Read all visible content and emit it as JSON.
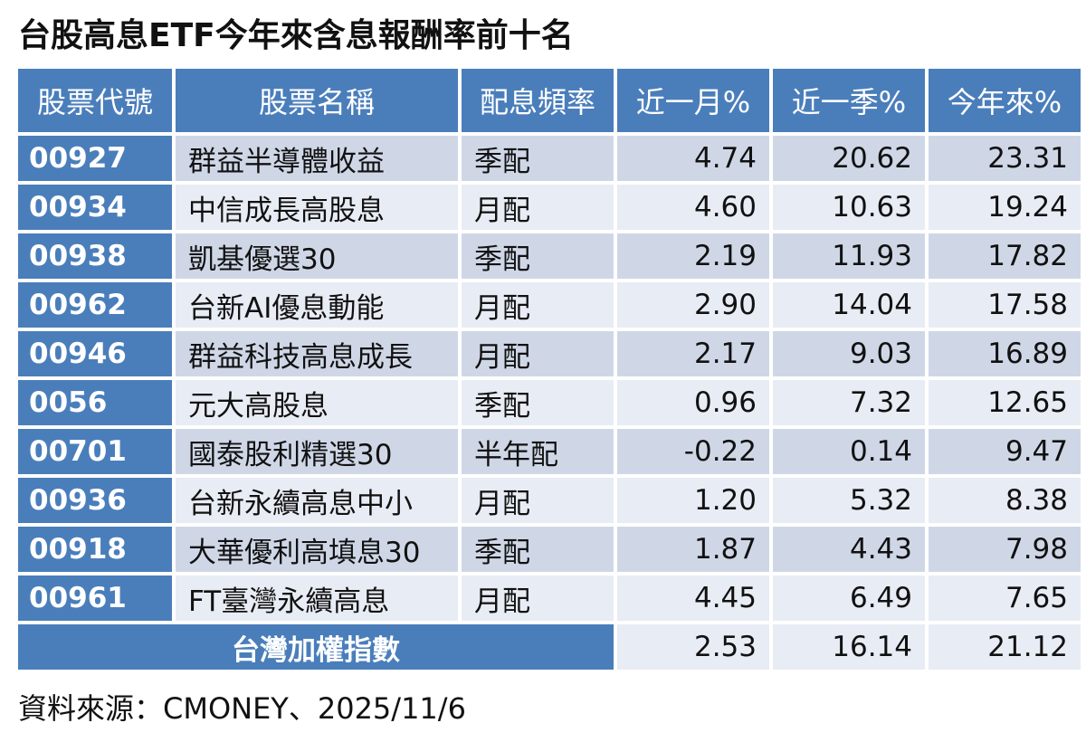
{
  "title": "台股高息ETF今年來含息報酬率前十名",
  "chart_data": {
    "type": "table",
    "title": "台股高息ETF今年來含息報酬率前十名",
    "columns": [
      "股票代號",
      "股票名稱",
      "配息頻率",
      "近一月%",
      "近一季%",
      "今年來%"
    ],
    "rows": [
      {
        "code": "00927",
        "name": "群益半導體收益",
        "freq": "季配",
        "m1": "4.74",
        "q1": "20.62",
        "ytd": "23.31"
      },
      {
        "code": "00934",
        "name": "中信成長高股息",
        "freq": "月配",
        "m1": "4.60",
        "q1": "10.63",
        "ytd": "19.24"
      },
      {
        "code": "00938",
        "name": "凱基優選30",
        "freq": "季配",
        "m1": "2.19",
        "q1": "11.93",
        "ytd": "17.82"
      },
      {
        "code": "00962",
        "name": "台新AI優息動能",
        "freq": "月配",
        "m1": "2.90",
        "q1": "14.04",
        "ytd": "17.58"
      },
      {
        "code": "00946",
        "name": "群益科技高息成長",
        "freq": "月配",
        "m1": "2.17",
        "q1": "9.03",
        "ytd": "16.89"
      },
      {
        "code": "0056",
        "name": "元大高股息",
        "freq": "季配",
        "m1": "0.96",
        "q1": "7.32",
        "ytd": "12.65"
      },
      {
        "code": "00701",
        "name": "國泰股利精選30",
        "freq": "半年配",
        "m1": "-0.22",
        "q1": "0.14",
        "ytd": "9.47"
      },
      {
        "code": "00936",
        "name": "台新永續高息中小",
        "freq": "月配",
        "m1": "1.20",
        "q1": "5.32",
        "ytd": "8.38"
      },
      {
        "code": "00918",
        "name": "大華優利高填息30",
        "freq": "季配",
        "m1": "1.87",
        "q1": "4.43",
        "ytd": "7.98"
      },
      {
        "code": "00961",
        "name": "FT臺灣永續高息",
        "freq": "月配",
        "m1": "4.45",
        "q1": "6.49",
        "ytd": "7.65"
      }
    ],
    "index_row": {
      "label": "台灣加權指數",
      "m1": "2.53",
      "q1": "16.14",
      "ytd": "21.12"
    }
  },
  "source": "資料來源：CMONEY、2025/11/6",
  "colors": {
    "header_bg": "#4a7ebb",
    "row_dark": "#cfd7e7",
    "row_light": "#e8ecf4"
  }
}
